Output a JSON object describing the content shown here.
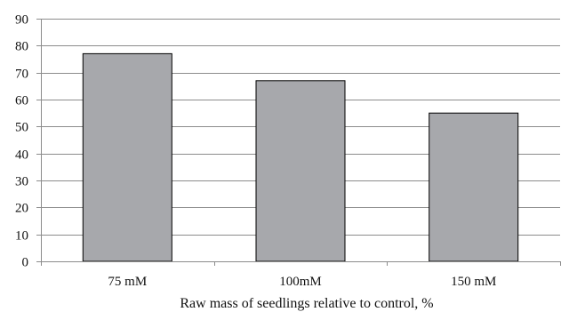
{
  "chart_data": {
    "type": "bar",
    "categories": [
      "75 mM",
      "100mM",
      "150 mM"
    ],
    "values": [
      77,
      67,
      55
    ],
    "xlabel": "Raw mass of seedlings relative to control, %",
    "ylabel": "",
    "ylim": [
      0,
      90
    ],
    "yticks": [
      0,
      10,
      20,
      30,
      40,
      50,
      60,
      70,
      80,
      90
    ],
    "grid": true,
    "legend": "none",
    "colors": {
      "bar_fill": "#a7a8ac",
      "bar_stroke": "#000000",
      "grid": "#8c8c8c",
      "axis": "#8c8c8c"
    }
  }
}
